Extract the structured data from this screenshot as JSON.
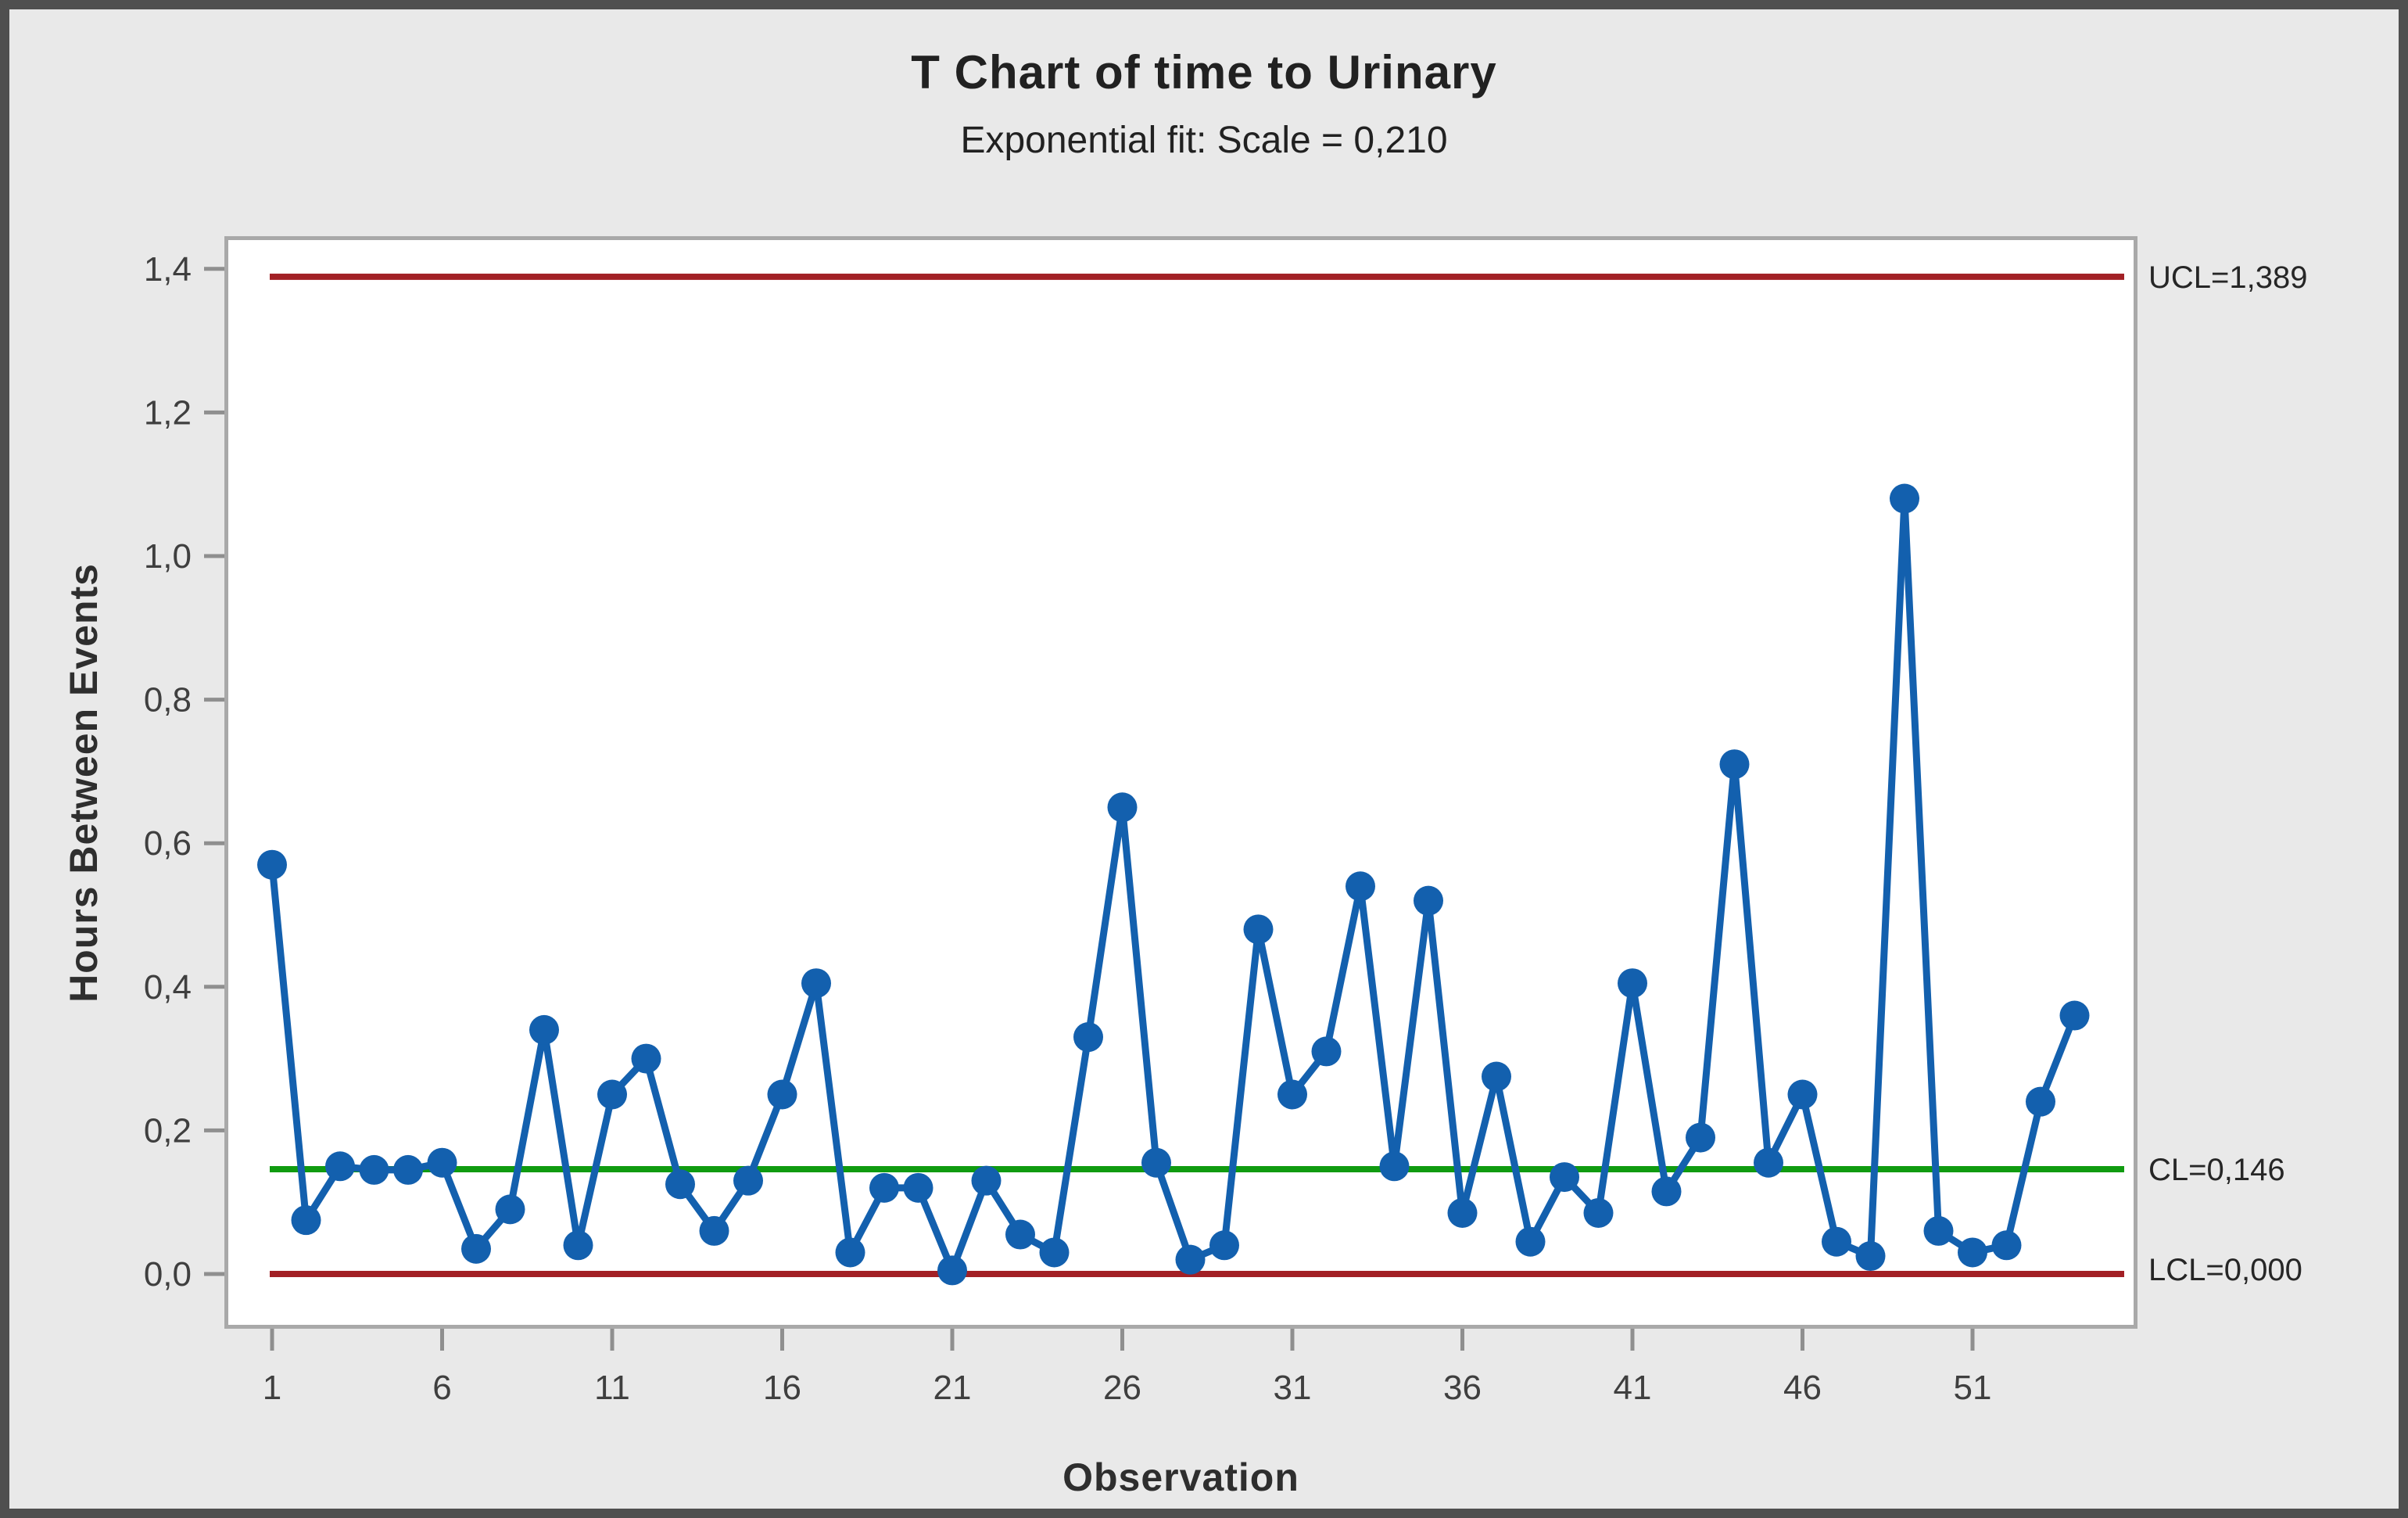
{
  "chart": {
    "title": "T Chart of time to Urinary",
    "subtitle": "Exponential fit: Scale = 0,210",
    "ylabel": "Hours Between Events",
    "xlabel": "Observation"
  },
  "chart_data": {
    "type": "line",
    "title": "T Chart of time to Urinary",
    "subtitle": "Exponential fit: Scale = 0,210",
    "xlabel": "Observation",
    "ylabel": "Hours Between Events",
    "n_observations": 54,
    "x": [
      1,
      2,
      3,
      4,
      5,
      6,
      7,
      8,
      9,
      10,
      11,
      12,
      13,
      14,
      15,
      16,
      17,
      18,
      19,
      20,
      21,
      22,
      23,
      24,
      25,
      26,
      27,
      28,
      29,
      30,
      31,
      32,
      33,
      34,
      35,
      36,
      37,
      38,
      39,
      40,
      41,
      42,
      43,
      44,
      45,
      46,
      47,
      48,
      49,
      50,
      51,
      52,
      53,
      54
    ],
    "values": [
      0.57,
      0.075,
      0.15,
      0.145,
      0.145,
      0.155,
      0.035,
      0.09,
      0.34,
      0.04,
      0.25,
      0.3,
      0.125,
      0.06,
      0.13,
      0.25,
      0.405,
      0.03,
      0.12,
      0.12,
      0.005,
      0.13,
      0.055,
      0.03,
      0.33,
      0.65,
      0.155,
      0.02,
      0.04,
      0.48,
      0.25,
      0.31,
      0.54,
      0.15,
      0.52,
      0.085,
      0.275,
      0.045,
      0.135,
      0.085,
      0.405,
      0.115,
      0.19,
      0.71,
      0.155,
      0.25,
      0.045,
      0.025,
      1.08,
      0.06,
      0.03,
      0.04,
      0.24,
      0.36
    ],
    "limits": {
      "ucl": {
        "value": 1.389,
        "label": "UCL=1,389",
        "color": "#a22025"
      },
      "cl": {
        "value": 0.146,
        "label": "CL=0,146",
        "color": "#109b10"
      },
      "lcl": {
        "value": 0.0,
        "label": "LCL=0,000",
        "color": "#a22025"
      }
    },
    "series_color": "#1360ae",
    "ylim": [
      0,
      1.445
    ],
    "y_ticks": [
      {
        "value": 0.0,
        "label": "0,0"
      },
      {
        "value": 0.2,
        "label": "0,2"
      },
      {
        "value": 0.4,
        "label": "0,4"
      },
      {
        "value": 0.6,
        "label": "0,6"
      },
      {
        "value": 0.8,
        "label": "0,8"
      },
      {
        "value": 1.0,
        "label": "1,0"
      },
      {
        "value": 1.2,
        "label": "1,2"
      },
      {
        "value": 1.4,
        "label": "1,4"
      }
    ],
    "x_ticks": [
      {
        "value": 1,
        "label": "1"
      },
      {
        "value": 6,
        "label": "6"
      },
      {
        "value": 11,
        "label": "11"
      },
      {
        "value": 16,
        "label": "16"
      },
      {
        "value": 21,
        "label": "21"
      },
      {
        "value": 26,
        "label": "26"
      },
      {
        "value": 31,
        "label": "31"
      },
      {
        "value": 36,
        "label": "36"
      },
      {
        "value": 41,
        "label": "41"
      },
      {
        "value": 46,
        "label": "46"
      },
      {
        "value": 51,
        "label": "51"
      },
      {
        "value": 51,
        "label": "51"
      }
    ],
    "grid": false,
    "legend": "none",
    "annotations_position": "right"
  }
}
